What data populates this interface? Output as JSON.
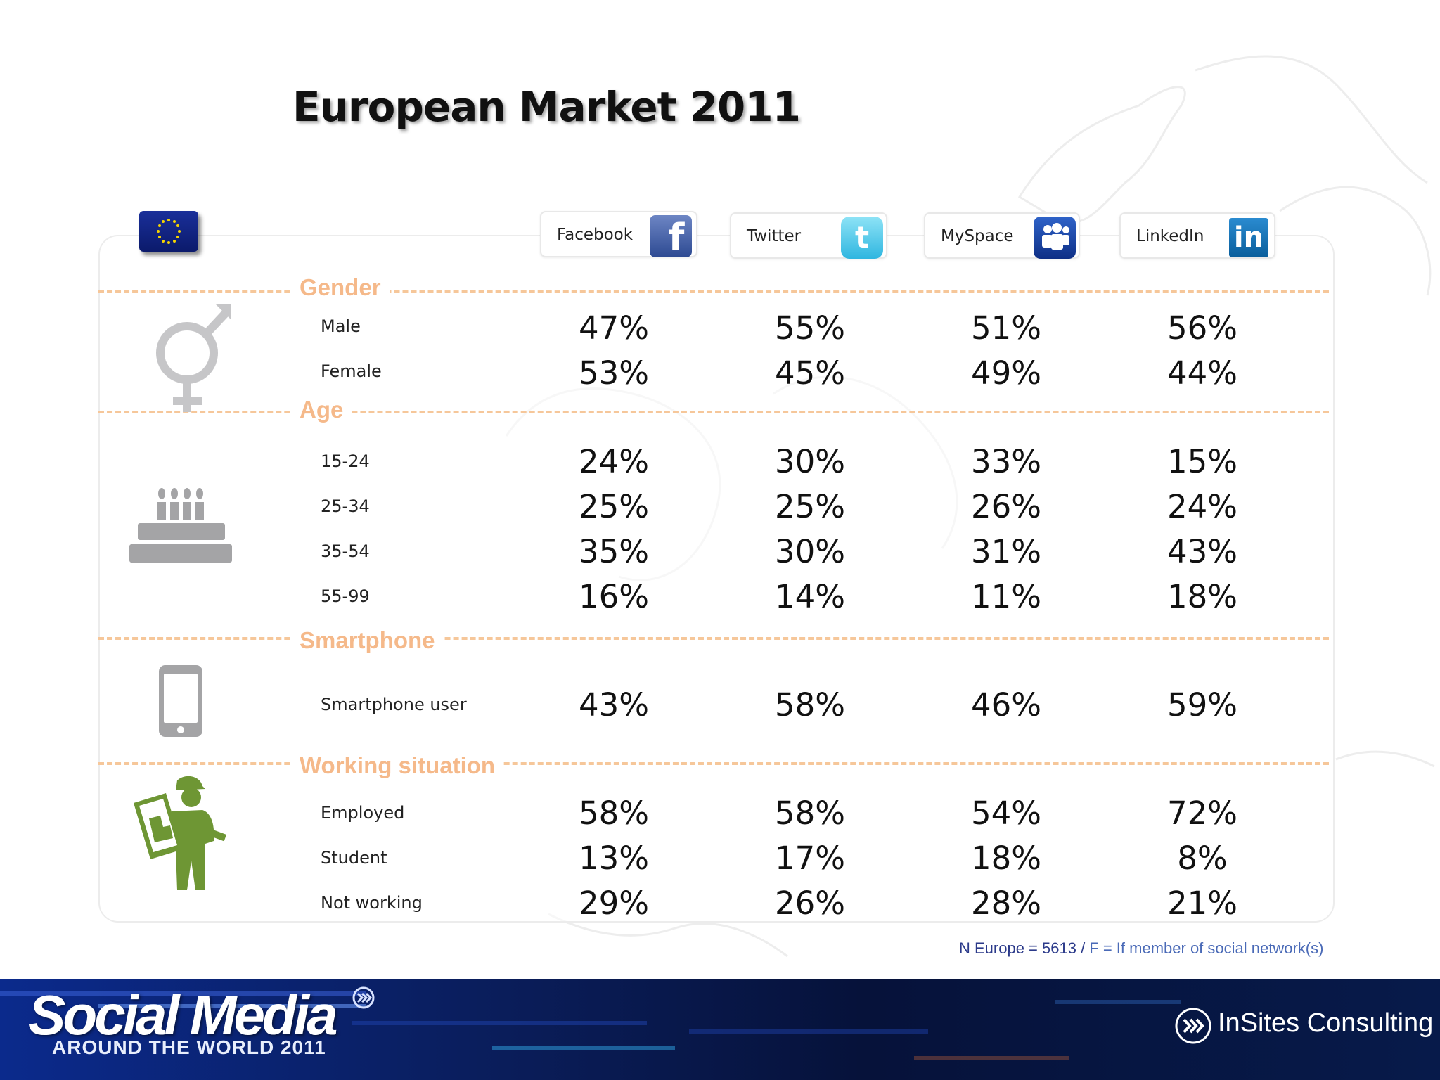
{
  "slide": {
    "title": "European Market 2011"
  },
  "networks": [
    {
      "name": "Facebook",
      "icon": "facebook-logo-icon"
    },
    {
      "name": "Twitter",
      "icon": "twitter-logo-icon"
    },
    {
      "name": "MySpace",
      "icon": "myspace-logo-icon"
    },
    {
      "name": "LinkedIn",
      "icon": "linkedin-logo-icon"
    }
  ],
  "sections": [
    {
      "title": "Gender",
      "icon": "gender-symbol-icon",
      "rows": [
        {
          "label": "Male",
          "values": [
            "47%",
            "55%",
            "51%",
            "56%"
          ]
        },
        {
          "label": "Female",
          "values": [
            "53%",
            "45%",
            "49%",
            "44%"
          ]
        }
      ]
    },
    {
      "title": "Age",
      "icon": "birthday-cake-icon",
      "rows": [
        {
          "label": "15-24",
          "values": [
            "24%",
            "30%",
            "33%",
            "15%"
          ]
        },
        {
          "label": "25-34",
          "values": [
            "25%",
            "25%",
            "26%",
            "24%"
          ]
        },
        {
          "label": "35-54",
          "values": [
            "35%",
            "30%",
            "31%",
            "43%"
          ]
        },
        {
          "label": "55-99",
          "values": [
            "16%",
            "14%",
            "11%",
            "18%"
          ]
        }
      ]
    },
    {
      "title": "Smartphone",
      "icon": "smartphone-icon",
      "rows": [
        {
          "label": "Smartphone user",
          "values": [
            "43%",
            "58%",
            "46%",
            "59%"
          ]
        }
      ]
    },
    {
      "title": "Working situation",
      "icon": "worker-icon",
      "rows": [
        {
          "label": "Employed",
          "values": [
            "58%",
            "58%",
            "54%",
            "72%"
          ]
        },
        {
          "label": "Student",
          "values": [
            "13%",
            "17%",
            "18%",
            "8%"
          ]
        },
        {
          "label": "Not working",
          "values": [
            "29%",
            "26%",
            "28%",
            "21%"
          ]
        }
      ]
    }
  ],
  "footnote": {
    "n_part": "N Europe  =  5613  /",
    "f_part": " F  =  If  member  of  social  network(s)"
  },
  "footer": {
    "brand_main": "Social Media",
    "brand_sub": "AROUND THE WORLD 2011",
    "consultancy": "InSites Consulting"
  },
  "colors": {
    "section_title": "#f5b98a",
    "dashed_line": "#f6c79a",
    "worker_green": "#6e9634",
    "icon_gray": "#a4a4a6",
    "footer_blue": "#0a1d5a"
  }
}
